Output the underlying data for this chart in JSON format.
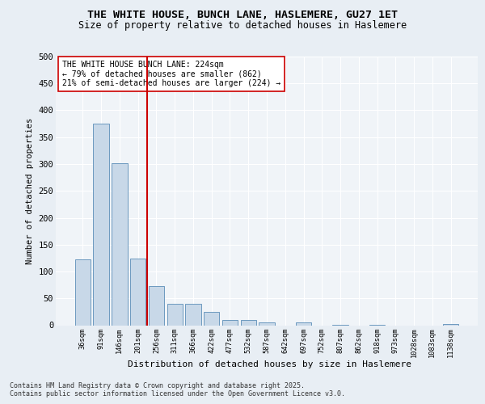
{
  "title1": "THE WHITE HOUSE, BUNCH LANE, HASLEMERE, GU27 1ET",
  "title2": "Size of property relative to detached houses in Haslemere",
  "xlabel": "Distribution of detached houses by size in Haslemere",
  "ylabel": "Number of detached properties",
  "categories": [
    "36sqm",
    "91sqm",
    "146sqm",
    "201sqm",
    "256sqm",
    "311sqm",
    "366sqm",
    "422sqm",
    "477sqm",
    "532sqm",
    "587sqm",
    "642sqm",
    "697sqm",
    "752sqm",
    "807sqm",
    "862sqm",
    "918sqm",
    "973sqm",
    "1028sqm",
    "1083sqm",
    "1138sqm"
  ],
  "values": [
    122,
    375,
    302,
    124,
    73,
    40,
    40,
    25,
    10,
    10,
    5,
    0,
    6,
    0,
    1,
    0,
    1,
    0,
    0,
    0,
    2
  ],
  "bar_color": "#c8d8e8",
  "bar_edge_color": "#5b8db8",
  "vline_x": 3.5,
  "vline_color": "#cc0000",
  "annotation_text": "THE WHITE HOUSE BUNCH LANE: 224sqm\n← 79% of detached houses are smaller (862)\n21% of semi-detached houses are larger (224) →",
  "annotation_box_color": "#ffffff",
  "annotation_box_edge": "#cc0000",
  "annotation_fontsize": 7.0,
  "ylim": [
    0,
    500
  ],
  "yticks": [
    0,
    50,
    100,
    150,
    200,
    250,
    300,
    350,
    400,
    450,
    500
  ],
  "footer_line1": "Contains HM Land Registry data © Crown copyright and database right 2025.",
  "footer_line2": "Contains public sector information licensed under the Open Government Licence v3.0.",
  "bg_color": "#e8eef4",
  "plot_bg_color": "#f0f4f8",
  "grid_color": "#ffffff"
}
